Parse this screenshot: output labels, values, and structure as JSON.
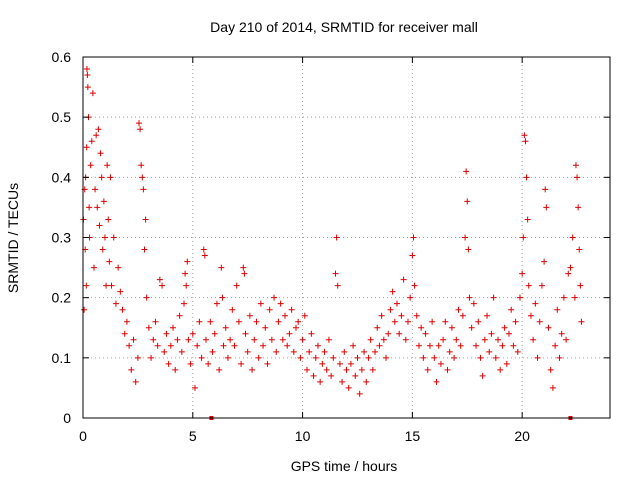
{
  "chart_data": {
    "type": "scatter",
    "title": "Day 210 of 2014, SRMTID for receiver mall",
    "xlabel": "GPS time / hours",
    "ylabel": "SRMTID / TECUs",
    "xlim": [
      0,
      24
    ],
    "ylim": [
      0,
      0.6
    ],
    "x_ticks": [
      0,
      5,
      10,
      15,
      20
    ],
    "x_tick_labels": [
      "0",
      "5",
      "10",
      "15",
      "20"
    ],
    "y_ticks": [
      0,
      0.1,
      0.2,
      0.3,
      0.4,
      0.5,
      0.6
    ],
    "y_tick_labels": [
      "0",
      "0.1",
      "0.2",
      "0.3",
      "0.4",
      "0.5",
      "0.6"
    ],
    "grid": true,
    "marker": "+",
    "series_color": "#e00000",
    "gap_markers_x": [
      5.85,
      22.2
    ],
    "series": [
      {
        "name": "SRMTID",
        "points": [
          [
            0.02,
            0.33
          ],
          [
            0.05,
            0.18
          ],
          [
            0.08,
            0.38
          ],
          [
            0.1,
            0.28
          ],
          [
            0.12,
            0.4
          ],
          [
            0.15,
            0.22
          ],
          [
            0.17,
            0.45
          ],
          [
            0.18,
            0.58
          ],
          [
            0.2,
            0.57
          ],
          [
            0.22,
            0.55
          ],
          [
            0.25,
            0.5
          ],
          [
            0.28,
            0.35
          ],
          [
            0.3,
            0.3
          ],
          [
            0.35,
            0.42
          ],
          [
            0.4,
            0.46
          ],
          [
            0.45,
            0.54
          ],
          [
            0.5,
            0.25
          ],
          [
            0.55,
            0.38
          ],
          [
            0.6,
            0.47
          ],
          [
            0.65,
            0.35
          ],
          [
            0.7,
            0.48
          ],
          [
            0.75,
            0.32
          ],
          [
            0.8,
            0.44
          ],
          [
            0.85,
            0.4
          ],
          [
            0.9,
            0.28
          ],
          [
            0.95,
            0.36
          ],
          [
            1.0,
            0.3
          ],
          [
            1.05,
            0.22
          ],
          [
            1.1,
            0.42
          ],
          [
            1.15,
            0.33
          ],
          [
            1.2,
            0.26
          ],
          [
            1.25,
            0.4
          ],
          [
            1.3,
            0.22
          ],
          [
            1.4,
            0.3
          ],
          [
            1.5,
            0.19
          ],
          [
            1.6,
            0.25
          ],
          [
            1.7,
            0.21
          ],
          [
            1.8,
            0.18
          ],
          [
            1.9,
            0.14
          ],
          [
            2.0,
            0.16
          ],
          [
            2.1,
            0.12
          ],
          [
            2.2,
            0.08
          ],
          [
            2.3,
            0.13
          ],
          [
            2.4,
            0.06
          ],
          [
            2.5,
            0.1
          ],
          [
            2.55,
            0.49
          ],
          [
            2.6,
            0.48
          ],
          [
            2.65,
            0.42
          ],
          [
            2.7,
            0.4
          ],
          [
            2.75,
            0.38
          ],
          [
            2.8,
            0.28
          ],
          [
            2.85,
            0.33
          ],
          [
            2.9,
            0.2
          ],
          [
            3.0,
            0.15
          ],
          [
            3.1,
            0.1
          ],
          [
            3.2,
            0.13
          ],
          [
            3.3,
            0.16
          ],
          [
            3.4,
            0.12
          ],
          [
            3.5,
            0.23
          ],
          [
            3.6,
            0.22
          ],
          [
            3.7,
            0.11
          ],
          [
            3.8,
            0.14
          ],
          [
            3.9,
            0.09
          ],
          [
            4.0,
            0.12
          ],
          [
            4.1,
            0.15
          ],
          [
            4.2,
            0.08
          ],
          [
            4.3,
            0.13
          ],
          [
            4.4,
            0.17
          ],
          [
            4.5,
            0.11
          ],
          [
            4.6,
            0.19
          ],
          [
            4.65,
            0.24
          ],
          [
            4.7,
            0.22
          ],
          [
            4.75,
            0.26
          ],
          [
            4.8,
            0.13
          ],
          [
            4.9,
            0.09
          ],
          [
            5.0,
            0.14
          ],
          [
            5.1,
            0.05
          ],
          [
            5.2,
            0.12
          ],
          [
            5.3,
            0.16
          ],
          [
            5.4,
            0.1
          ],
          [
            5.5,
            0.28
          ],
          [
            5.55,
            0.27
          ],
          [
            5.6,
            0.13
          ],
          [
            5.7,
            0.09
          ],
          [
            5.8,
            0.16
          ],
          [
            5.9,
            0.11
          ],
          [
            6.0,
            0.14
          ],
          [
            6.1,
            0.19
          ],
          [
            6.2,
            0.08
          ],
          [
            6.3,
            0.25
          ],
          [
            6.35,
            0.2
          ],
          [
            6.4,
            0.12
          ],
          [
            6.5,
            0.15
          ],
          [
            6.6,
            0.1
          ],
          [
            6.7,
            0.13
          ],
          [
            6.8,
            0.18
          ],
          [
            6.9,
            0.12
          ],
          [
            7.0,
            0.22
          ],
          [
            7.1,
            0.16
          ],
          [
            7.2,
            0.09
          ],
          [
            7.3,
            0.25
          ],
          [
            7.35,
            0.24
          ],
          [
            7.4,
            0.14
          ],
          [
            7.5,
            0.11
          ],
          [
            7.6,
            0.17
          ],
          [
            7.7,
            0.08
          ],
          [
            7.8,
            0.13
          ],
          [
            7.9,
            0.16
          ],
          [
            8.0,
            0.1
          ],
          [
            8.1,
            0.19
          ],
          [
            8.2,
            0.12
          ],
          [
            8.3,
            0.15
          ],
          [
            8.4,
            0.09
          ],
          [
            8.5,
            0.18
          ],
          [
            8.6,
            0.13
          ],
          [
            8.7,
            0.2
          ],
          [
            8.8,
            0.11
          ],
          [
            8.9,
            0.16
          ],
          [
            9.0,
            0.19
          ],
          [
            9.1,
            0.13
          ],
          [
            9.2,
            0.17
          ],
          [
            9.3,
            0.12
          ],
          [
            9.4,
            0.14
          ],
          [
            9.5,
            0.18
          ],
          [
            9.6,
            0.11
          ],
          [
            9.7,
            0.15
          ],
          [
            9.8,
            0.16
          ],
          [
            9.9,
            0.1
          ],
          [
            10.0,
            0.13
          ],
          [
            10.1,
            0.17
          ],
          [
            10.2,
            0.08
          ],
          [
            10.3,
            0.11
          ],
          [
            10.4,
            0.14
          ],
          [
            10.5,
            0.07
          ],
          [
            10.6,
            0.1
          ],
          [
            10.7,
            0.12
          ],
          [
            10.8,
            0.06
          ],
          [
            10.9,
            0.09
          ],
          [
            11.0,
            0.11
          ],
          [
            11.1,
            0.08
          ],
          [
            11.2,
            0.13
          ],
          [
            11.3,
            0.07
          ],
          [
            11.4,
            0.1
          ],
          [
            11.5,
            0.24
          ],
          [
            11.55,
            0.3
          ],
          [
            11.6,
            0.22
          ],
          [
            11.7,
            0.09
          ],
          [
            11.8,
            0.06
          ],
          [
            11.9,
            0.11
          ],
          [
            12.0,
            0.08
          ],
          [
            12.1,
            0.05
          ],
          [
            12.2,
            0.09
          ],
          [
            12.3,
            0.12
          ],
          [
            12.4,
            0.07
          ],
          [
            12.5,
            0.1
          ],
          [
            12.6,
            0.04
          ],
          [
            12.7,
            0.08
          ],
          [
            12.8,
            0.11
          ],
          [
            12.9,
            0.06
          ],
          [
            13.0,
            0.1
          ],
          [
            13.1,
            0.13
          ],
          [
            13.2,
            0.08
          ],
          [
            13.3,
            0.11
          ],
          [
            13.4,
            0.15
          ],
          [
            13.5,
            0.12
          ],
          [
            13.6,
            0.17
          ],
          [
            13.7,
            0.13
          ],
          [
            13.8,
            0.1
          ],
          [
            13.9,
            0.14
          ],
          [
            14.0,
            0.18
          ],
          [
            14.1,
            0.21
          ],
          [
            14.2,
            0.16
          ],
          [
            14.3,
            0.19
          ],
          [
            14.4,
            0.14
          ],
          [
            14.5,
            0.17
          ],
          [
            14.6,
            0.23
          ],
          [
            14.7,
            0.13
          ],
          [
            14.8,
            0.16
          ],
          [
            14.9,
            0.2
          ],
          [
            15.0,
            0.27
          ],
          [
            15.05,
            0.3
          ],
          [
            15.1,
            0.22
          ],
          [
            15.2,
            0.17
          ],
          [
            15.3,
            0.12
          ],
          [
            15.4,
            0.15
          ],
          [
            15.5,
            0.1
          ],
          [
            15.6,
            0.14
          ],
          [
            15.7,
            0.08
          ],
          [
            15.8,
            0.12
          ],
          [
            15.9,
            0.16
          ],
          [
            16.0,
            0.1
          ],
          [
            16.1,
            0.06
          ],
          [
            16.2,
            0.12
          ],
          [
            16.3,
            0.09
          ],
          [
            16.4,
            0.13
          ],
          [
            16.5,
            0.16
          ],
          [
            16.6,
            0.08
          ],
          [
            16.7,
            0.11
          ],
          [
            16.8,
            0.15
          ],
          [
            16.9,
            0.1
          ],
          [
            17.0,
            0.13
          ],
          [
            17.1,
            0.18
          ],
          [
            17.2,
            0.12
          ],
          [
            17.3,
            0.17
          ],
          [
            17.4,
            0.3
          ],
          [
            17.45,
            0.41
          ],
          [
            17.5,
            0.36
          ],
          [
            17.55,
            0.28
          ],
          [
            17.6,
            0.2
          ],
          [
            17.7,
            0.15
          ],
          [
            17.8,
            0.19
          ],
          [
            17.9,
            0.12
          ],
          [
            18.0,
            0.16
          ],
          [
            18.1,
            0.1
          ],
          [
            18.2,
            0.07
          ],
          [
            18.3,
            0.13
          ],
          [
            18.4,
            0.17
          ],
          [
            18.5,
            0.11
          ],
          [
            18.6,
            0.14
          ],
          [
            18.7,
            0.2
          ],
          [
            18.8,
            0.1
          ],
          [
            18.9,
            0.13
          ],
          [
            19.0,
            0.08
          ],
          [
            19.1,
            0.12
          ],
          [
            19.2,
            0.15
          ],
          [
            19.3,
            0.09
          ],
          [
            19.4,
            0.14
          ],
          [
            19.5,
            0.18
          ],
          [
            19.6,
            0.12
          ],
          [
            19.7,
            0.16
          ],
          [
            19.8,
            0.11
          ],
          [
            19.9,
            0.2
          ],
          [
            20.0,
            0.24
          ],
          [
            20.05,
            0.3
          ],
          [
            20.1,
            0.47
          ],
          [
            20.15,
            0.46
          ],
          [
            20.2,
            0.4
          ],
          [
            20.25,
            0.33
          ],
          [
            20.3,
            0.22
          ],
          [
            20.4,
            0.17
          ],
          [
            20.5,
            0.13
          ],
          [
            20.6,
            0.19
          ],
          [
            20.7,
            0.1
          ],
          [
            20.8,
            0.16
          ],
          [
            20.9,
            0.22
          ],
          [
            21.0,
            0.26
          ],
          [
            21.05,
            0.38
          ],
          [
            21.1,
            0.35
          ],
          [
            21.2,
            0.15
          ],
          [
            21.3,
            0.08
          ],
          [
            21.4,
            0.05
          ],
          [
            21.5,
            0.12
          ],
          [
            21.6,
            0.18
          ],
          [
            21.7,
            0.1
          ],
          [
            21.8,
            0.14
          ],
          [
            21.9,
            0.2
          ],
          [
            22.0,
            0.13
          ],
          [
            22.1,
            0.24
          ],
          [
            22.2,
            0.25
          ],
          [
            22.3,
            0.3
          ],
          [
            22.4,
            0.2
          ],
          [
            22.45,
            0.42
          ],
          [
            22.5,
            0.4
          ],
          [
            22.55,
            0.35
          ],
          [
            22.6,
            0.28
          ],
          [
            22.65,
            0.22
          ],
          [
            22.7,
            0.16
          ]
        ]
      }
    ]
  }
}
